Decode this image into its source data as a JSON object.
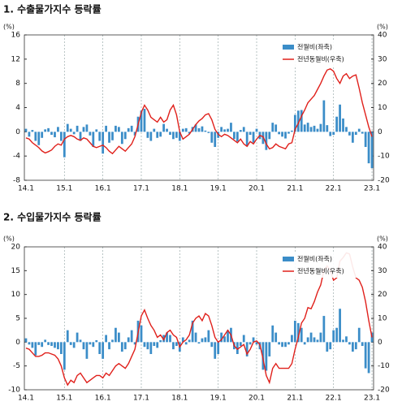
{
  "chart_data": [
    {
      "type": "combo",
      "title": "1. 수출물가지수 등락률",
      "ylabel": "(%)",
      "y2label": "(%)",
      "legend": "upper right",
      "grid": true,
      "categories": [
        "14.1",
        null,
        null,
        null,
        null,
        null,
        null,
        null,
        null,
        null,
        null,
        null,
        "15.1",
        null,
        null,
        null,
        null,
        null,
        null,
        null,
        null,
        null,
        null,
        null,
        "16.1",
        null,
        null,
        null,
        null,
        null,
        null,
        null,
        null,
        null,
        null,
        null,
        "17.1",
        null,
        null,
        null,
        null,
        null,
        null,
        null,
        null,
        null,
        null,
        null,
        "18.1",
        null,
        null,
        null,
        null,
        null,
        null,
        null,
        null,
        null,
        null,
        null,
        "19.1",
        null,
        null,
        null,
        null,
        null,
        null,
        null,
        null,
        null,
        null,
        null,
        "20.1",
        null,
        null,
        null,
        null,
        null,
        null,
        null,
        null,
        null,
        null,
        null,
        "21.1",
        null,
        null,
        null,
        null,
        null,
        null,
        null,
        null,
        null,
        null,
        null,
        "22.1",
        null,
        null,
        null,
        null,
        null,
        null,
        null,
        null,
        null,
        null,
        null,
        "23.1"
      ],
      "ylim": [
        -8,
        16
      ],
      "yticks": [
        -8,
        -4,
        0,
        4,
        8,
        12,
        16
      ],
      "y2lim": [
        -20,
        40
      ],
      "y2ticks": [
        -20,
        -10,
        0,
        10,
        20,
        30,
        40
      ],
      "series": [
        {
          "name": "전월비(좌축)",
          "type": "bar",
          "color": "#3b8dc8",
          "values": [
            0.5,
            -0.8,
            0.3,
            -1.5,
            -2.2,
            -1.0,
            0.4,
            0.6,
            -0.5,
            -0.9,
            0.8,
            -1.5,
            -4.2,
            1.3,
            0.5,
            -0.4,
            1.0,
            -1.5,
            0.8,
            1.2,
            -0.6,
            -2.5,
            0.4,
            -1.5,
            -3.6,
            1.0,
            -1.8,
            -1.4,
            1.0,
            0.8,
            -2.0,
            -1.2,
            0.6,
            1.0,
            -0.6,
            2.5,
            3.5,
            3.8,
            -1.0,
            -1.5,
            0.5,
            -1.0,
            -0.8,
            1.3,
            0.5,
            -0.5,
            -1.2,
            -1.0,
            -1.5,
            0.5,
            0.6,
            -0.3,
            0.8,
            1.2,
            0.6,
            0.9,
            0.2,
            -0.2,
            -1.8,
            -2.5,
            -1.0,
            0.8,
            0.4,
            0.5,
            1.5,
            -1.2,
            -1.6,
            0.3,
            0.8,
            -2.4,
            -0.5,
            -1.8,
            0.5,
            -1.2,
            -2.0,
            -3.0,
            -1.2,
            1.5,
            1.2,
            -0.4,
            -0.8,
            -1.1,
            -0.3,
            0.2,
            2.8,
            3.5,
            3.6,
            1.2,
            1.5,
            0.8,
            1.0,
            0.5,
            1.3,
            5.2,
            1.1,
            -0.7,
            -0.5,
            2.5,
            4.5,
            2.2,
            0.8,
            -0.6,
            -1.8,
            -0.5,
            0.5,
            -0.3,
            -2.5,
            -5.2,
            -6.0
          ]
        },
        {
          "name": "전년동월비(우축)",
          "type": "line",
          "axis": "y2",
          "color": "#e0201b",
          "values": [
            -2.5,
            -3.0,
            -4.5,
            -5.5,
            -6.5,
            -7.9,
            -8.7,
            -8.2,
            -7.5,
            -6.0,
            -5.0,
            -5.5,
            -3.0,
            -2.0,
            -1.5,
            -2.0,
            -3.0,
            -3.5,
            -2.5,
            -3.0,
            -4.5,
            -6.0,
            -6.5,
            -6.0,
            -5.5,
            -6.5,
            -8.0,
            -9.0,
            -7.5,
            -6.0,
            -7.0,
            -8.0,
            -6.5,
            -5.0,
            -2.0,
            3.0,
            8.0,
            11.0,
            9.0,
            6.0,
            5.0,
            4.0,
            6.0,
            4.0,
            5.0,
            9.0,
            11.0,
            7.0,
            0.0,
            -3.0,
            -2.0,
            -1.0,
            1.0,
            3.0,
            4.5,
            5.5,
            7.0,
            7.5,
            5.0,
            1.0,
            -1.0,
            -2.0,
            -1.0,
            -1.5,
            -2.5,
            -3.5,
            -4.5,
            -3.0,
            -5.0,
            -6.0,
            -4.0,
            -5.0,
            -3.0,
            -1.5,
            -2.0,
            -5.0,
            -7.0,
            -6.5,
            -5.0,
            -6.0,
            -6.5,
            -7.0,
            -5.0,
            -4.5,
            1.0,
            3.5,
            6.5,
            9.0,
            12.0,
            13.5,
            15.0,
            17.5,
            20.0,
            23.0,
            25.5,
            26.0,
            25.0,
            22.0,
            20.0,
            23.0,
            24.0,
            22.0,
            23.0,
            23.5,
            18.0,
            12.0,
            7.0,
            2.0,
            -2.0
          ]
        }
      ]
    },
    {
      "type": "combo",
      "title": "2. 수입물가지수 등락률",
      "ylabel": "(%)",
      "y2label": "(%)",
      "legend": "upper right",
      "grid": true,
      "categories": [
        "14.1",
        null,
        null,
        null,
        null,
        null,
        null,
        null,
        null,
        null,
        null,
        null,
        "15.1",
        null,
        null,
        null,
        null,
        null,
        null,
        null,
        null,
        null,
        null,
        null,
        "16.1",
        null,
        null,
        null,
        null,
        null,
        null,
        null,
        null,
        null,
        null,
        null,
        "17.1",
        null,
        null,
        null,
        null,
        null,
        null,
        null,
        null,
        null,
        null,
        null,
        "18.1",
        null,
        null,
        null,
        null,
        null,
        null,
        null,
        null,
        null,
        null,
        null,
        "19.1",
        null,
        null,
        null,
        null,
        null,
        null,
        null,
        null,
        null,
        null,
        null,
        "20.1",
        null,
        null,
        null,
        null,
        null,
        null,
        null,
        null,
        null,
        null,
        null,
        "21.1",
        null,
        null,
        null,
        null,
        null,
        null,
        null,
        null,
        null,
        null,
        null,
        "22.1",
        null,
        null,
        null,
        null,
        null,
        null,
        null,
        null,
        null,
        null,
        null,
        "23.1"
      ],
      "ylim": [
        -10,
        20
      ],
      "yticks": [
        -10,
        -5,
        0,
        5,
        10,
        15,
        20
      ],
      "y2lim": [
        -20,
        40
      ],
      "y2ticks": [
        -20,
        -10,
        0,
        10,
        20,
        30,
        40
      ],
      "series": [
        {
          "name": "전월비(좌축)",
          "type": "bar",
          "color": "#3b8dc8",
          "values": [
            0.8,
            -0.5,
            -1.2,
            -2.8,
            -0.6,
            -1.0,
            0.5,
            -0.6,
            -0.8,
            -1.2,
            -1.5,
            -2.5,
            -5.8,
            2.5,
            -0.6,
            -1.2,
            2.0,
            0.5,
            -1.5,
            -3.5,
            -0.5,
            -1.0,
            0.4,
            -2.5,
            -3.5,
            1.5,
            -1.5,
            0.5,
            3.0,
            2.0,
            -2.0,
            -1.5,
            1.0,
            2.5,
            -0.5,
            4.5,
            3.5,
            -1.0,
            -1.5,
            -2.5,
            -0.8,
            -1.2,
            0.4,
            1.5,
            2.0,
            1.5,
            -1.5,
            -0.8,
            -2.0,
            1.0,
            -0.5,
            0.5,
            4.5,
            2.0,
            -0.3,
            0.8,
            1.0,
            2.5,
            -1.0,
            -3.5,
            -2.5,
            2.0,
            1.2,
            2.5,
            3.0,
            -1.5,
            -2.5,
            -0.8,
            1.5,
            -3.0,
            -0.5,
            1.0,
            -0.5,
            -1.5,
            -5.8,
            -6.0,
            -3.0,
            3.5,
            2.0,
            -0.5,
            -1.0,
            -1.0,
            -0.5,
            1.5,
            4.5,
            4.0,
            3.0,
            -0.5,
            1.0,
            2.0,
            1.0,
            0.5,
            2.0,
            5.5,
            -2.0,
            -1.5,
            2.5,
            3.0,
            7.0,
            0.5,
            1.2,
            -0.5,
            -2.0,
            -1.5,
            3.0,
            -0.8,
            -5.5,
            -6.5,
            2.0
          ]
        },
        {
          "name": "전년동월비(우축)",
          "type": "line",
          "axis": "y2",
          "color": "#e0201b",
          "values": [
            -2.5,
            -3.0,
            -4.5,
            -6.0,
            -6.0,
            -5.5,
            -4.5,
            -4.5,
            -5.0,
            -5.5,
            -7.0,
            -10.0,
            -15.0,
            -18.0,
            -16.0,
            -17.0,
            -14.0,
            -13.0,
            -15.0,
            -17.0,
            -16.0,
            -15.0,
            -14.0,
            -14.0,
            -15.0,
            -13.0,
            -14.0,
            -12.0,
            -10.0,
            -9.0,
            -10.0,
            -11.0,
            -9.0,
            -6.0,
            -3.0,
            4.0,
            11.0,
            13.5,
            10.0,
            7.0,
            5.0,
            2.0,
            3.0,
            1.0,
            4.0,
            5.0,
            3.0,
            2.0,
            -2.0,
            0.0,
            1.0,
            3.0,
            8.0,
            10.0,
            11.0,
            9.0,
            12.0,
            11.0,
            7.0,
            2.0,
            0.0,
            1.0,
            3.0,
            5.0,
            3.0,
            -1.5,
            -3.0,
            -2.0,
            -1.0,
            -5.0,
            -3.0,
            0.0,
            0.5,
            -1.0,
            -7.0,
            -14.0,
            -17.0,
            -11.0,
            -9.0,
            -11.0,
            -11.0,
            -11.0,
            -11.0,
            -9.0,
            -3.0,
            2.0,
            8.0,
            10.0,
            14.5,
            14.0,
            17.0,
            21.0,
            24.0,
            30.0,
            32.0,
            30.0,
            26.0,
            27.0,
            34.0,
            35.5,
            37.5,
            37.0,
            31.5,
            27.0,
            26.0,
            23.0,
            17.0,
            9.0,
            2.0
          ]
        }
      ]
    }
  ]
}
